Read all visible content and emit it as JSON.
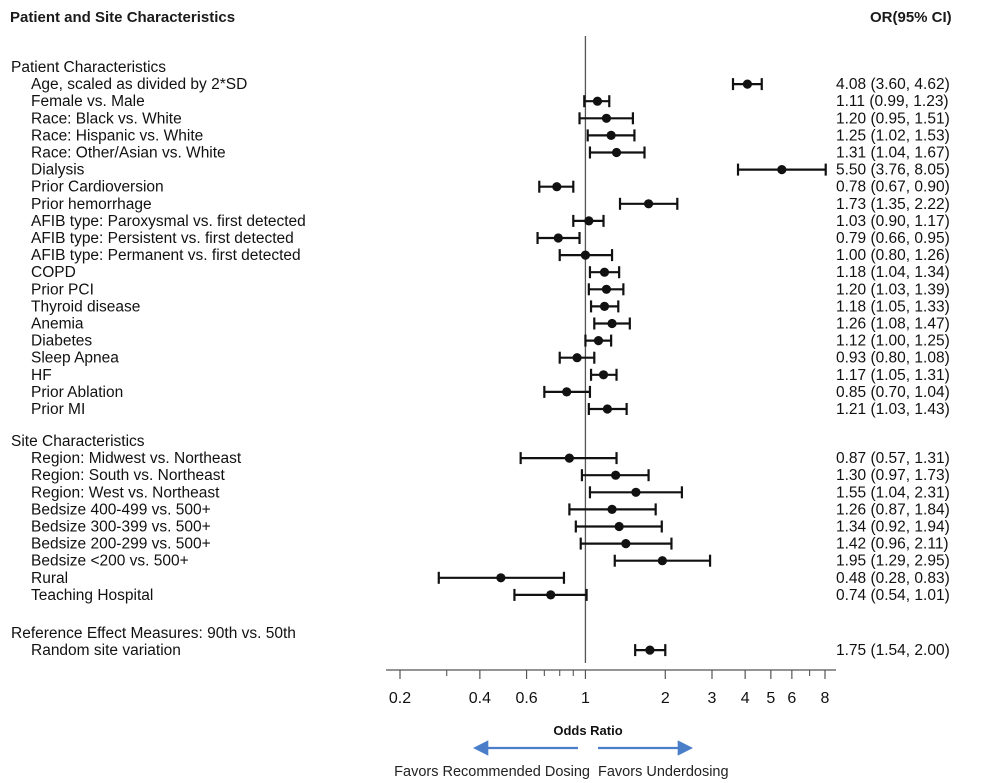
{
  "chart_data": {
    "type": "forest",
    "title": "Patient and Site Characteristics",
    "value_header": "OR(95% CI)",
    "xlabel": "Odds Ratio",
    "x_scale": "log",
    "xlim": [
      0.18,
      8.6
    ],
    "reference_line": 1,
    "x_ticks": [
      0.2,
      0.4,
      0.6,
      1,
      2,
      3,
      4,
      5,
      6,
      8
    ],
    "x_tick_labels": [
      "0.2",
      "0.4",
      "0.6",
      "1",
      "2",
      "3",
      "4",
      "5",
      "6",
      "8"
    ],
    "direction_labels": {
      "left": "Favors Recommended Dosing",
      "right": "Favors Underdosing"
    },
    "arrow_color": "#4a7ec9",
    "sections": [
      {
        "title": "Patient Characteristics",
        "rows": [
          {
            "label": "Age, scaled as divided by 2*SD",
            "or": 4.08,
            "lo": 3.6,
            "hi": 4.62,
            "text": "4.08 (3.60, 4.62)"
          },
          {
            "label": "Female vs. Male",
            "or": 1.11,
            "lo": 0.99,
            "hi": 1.23,
            "text": "1.11 (0.99, 1.23)"
          },
          {
            "label": "Race: Black vs. White",
            "or": 1.2,
            "lo": 0.95,
            "hi": 1.51,
            "text": "1.20 (0.95, 1.51)"
          },
          {
            "label": "Race: Hispanic vs. White",
            "or": 1.25,
            "lo": 1.02,
            "hi": 1.53,
            "text": "1.25 (1.02, 1.53)"
          },
          {
            "label": "Race: Other/Asian vs. White",
            "or": 1.31,
            "lo": 1.04,
            "hi": 1.67,
            "text": "1.31 (1.04, 1.67)"
          },
          {
            "label": "Dialysis",
            "or": 5.5,
            "lo": 3.76,
            "hi": 8.05,
            "text": "5.50 (3.76, 8.05)"
          },
          {
            "label": "Prior Cardioversion",
            "or": 0.78,
            "lo": 0.67,
            "hi": 0.9,
            "text": "0.78 (0.67, 0.90)"
          },
          {
            "label": "Prior hemorrhage",
            "or": 1.73,
            "lo": 1.35,
            "hi": 2.22,
            "text": "1.73 (1.35, 2.22)"
          },
          {
            "label": "AFIB type: Paroxysmal vs. first detected",
            "or": 1.03,
            "lo": 0.9,
            "hi": 1.17,
            "text": "1.03 (0.90, 1.17)"
          },
          {
            "label": "AFIB type: Persistent vs. first detected",
            "or": 0.79,
            "lo": 0.66,
            "hi": 0.95,
            "text": "0.79 (0.66, 0.95)"
          },
          {
            "label": "AFIB type: Permanent vs. first detected",
            "or": 1.0,
            "lo": 0.8,
            "hi": 1.26,
            "text": "1.00 (0.80, 1.26)"
          },
          {
            "label": "COPD",
            "or": 1.18,
            "lo": 1.04,
            "hi": 1.34,
            "text": "1.18 (1.04, 1.34)"
          },
          {
            "label": "Prior PCI",
            "or": 1.2,
            "lo": 1.03,
            "hi": 1.39,
            "text": "1.20 (1.03, 1.39)"
          },
          {
            "label": "Thyroid disease",
            "or": 1.18,
            "lo": 1.05,
            "hi": 1.33,
            "text": "1.18 (1.05, 1.33)"
          },
          {
            "label": "Anemia",
            "or": 1.26,
            "lo": 1.08,
            "hi": 1.47,
            "text": "1.26 (1.08, 1.47)"
          },
          {
            "label": "Diabetes",
            "or": 1.12,
            "lo": 1.0,
            "hi": 1.25,
            "text": "1.12 (1.00, 1.25)"
          },
          {
            "label": "Sleep Apnea",
            "or": 0.93,
            "lo": 0.8,
            "hi": 1.08,
            "text": "0.93 (0.80, 1.08)"
          },
          {
            "label": "HF",
            "or": 1.17,
            "lo": 1.05,
            "hi": 1.31,
            "text": "1.17 (1.05, 1.31)"
          },
          {
            "label": "Prior Ablation",
            "or": 0.85,
            "lo": 0.7,
            "hi": 1.04,
            "text": "0.85 (0.70, 1.04)"
          },
          {
            "label": "Prior MI",
            "or": 1.21,
            "lo": 1.03,
            "hi": 1.43,
            "text": "1.21 (1.03, 1.43)"
          }
        ]
      },
      {
        "title": "Site Characteristics",
        "rows": [
          {
            "label": "Region: Midwest vs. Northeast",
            "or": 0.87,
            "lo": 0.57,
            "hi": 1.31,
            "text": "0.87 (0.57, 1.31)"
          },
          {
            "label": "Region: South vs. Northeast",
            "or": 1.3,
            "lo": 0.97,
            "hi": 1.73,
            "text": "1.30 (0.97, 1.73)"
          },
          {
            "label": "Region: West vs. Northeast",
            "or": 1.55,
            "lo": 1.04,
            "hi": 2.31,
            "text": "1.55 (1.04, 2.31)"
          },
          {
            "label": "Bedsize 400-499 vs. 500+",
            "or": 1.26,
            "lo": 0.87,
            "hi": 1.84,
            "text": "1.26 (0.87, 1.84)"
          },
          {
            "label": "Bedsize 300-399 vs. 500+",
            "or": 1.34,
            "lo": 0.92,
            "hi": 1.94,
            "text": "1.34 (0.92, 1.94)"
          },
          {
            "label": "Bedsize 200-299 vs. 500+",
            "or": 1.42,
            "lo": 0.96,
            "hi": 2.11,
            "text": "1.42 (0.96, 2.11)"
          },
          {
            "label": "Bedsize <200 vs. 500+",
            "or": 1.95,
            "lo": 1.29,
            "hi": 2.95,
            "text": "1.95 (1.29, 2.95)"
          },
          {
            "label": "Rural",
            "or": 0.48,
            "lo": 0.28,
            "hi": 0.83,
            "text": "0.48 (0.28, 0.83)"
          },
          {
            "label": "Teaching Hospital",
            "or": 0.74,
            "lo": 0.54,
            "hi": 1.01,
            "text": "0.74 (0.54, 1.01)"
          }
        ]
      },
      {
        "title": "Reference Effect Measures: 90th vs. 50th",
        "rows": [
          {
            "label": "Random site variation",
            "or": 1.75,
            "lo": 1.54,
            "hi": 2.0,
            "text": "1.75 (1.54, 2.00)"
          }
        ]
      }
    ]
  }
}
